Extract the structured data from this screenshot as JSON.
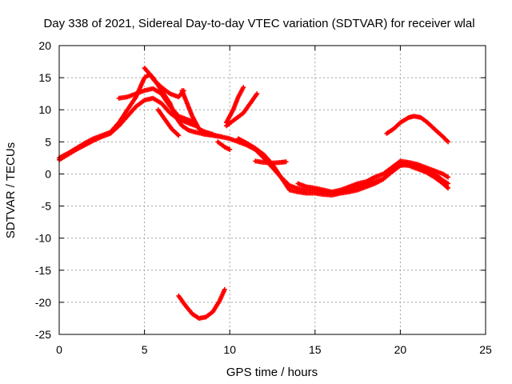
{
  "chart_data": {
    "type": "scatter",
    "title": "Day 338 of 2021, Sidereal Day-to-day VTEC variation (SDTVAR) for receiver wlal",
    "xlabel": "GPS time / hours",
    "ylabel": "SDTVAR / TECUs",
    "xlim": [
      0,
      25
    ],
    "ylim": [
      -25,
      20
    ],
    "xticks": [
      0,
      5,
      10,
      15,
      20,
      25
    ],
    "yticks": [
      20,
      15,
      10,
      5,
      0,
      -5,
      -10,
      -15,
      -20,
      -25
    ],
    "grid": true,
    "marker": "+",
    "color": "#ff0000",
    "series": [
      {
        "name": "track-1",
        "points": [
          [
            0,
            2.5
          ],
          [
            0.5,
            3.2
          ],
          [
            1,
            4
          ],
          [
            1.5,
            4.8
          ],
          [
            2,
            5.5
          ],
          [
            2.5,
            6
          ],
          [
            3,
            6.5
          ],
          [
            3.5,
            8
          ],
          [
            4,
            10
          ],
          [
            4.5,
            12
          ],
          [
            5,
            15
          ],
          [
            5.3,
            15.5
          ],
          [
            5.6,
            14.5
          ],
          [
            6,
            13.5
          ],
          [
            6.5,
            12.5
          ],
          [
            7,
            12
          ],
          [
            7.3,
            13
          ]
        ]
      },
      {
        "name": "track-2",
        "points": [
          [
            0,
            2.2
          ],
          [
            0.5,
            3
          ],
          [
            1,
            3.8
          ],
          [
            1.5,
            4.5
          ],
          [
            2,
            5.2
          ],
          [
            2.5,
            5.8
          ],
          [
            3,
            6.3
          ],
          [
            3.5,
            7.5
          ],
          [
            4,
            9
          ],
          [
            4.5,
            10.5
          ],
          [
            5,
            11.5
          ],
          [
            5.5,
            11.8
          ],
          [
            6,
            11
          ],
          [
            6.5,
            9.5
          ],
          [
            7,
            8.5
          ],
          [
            7.5,
            8
          ],
          [
            8,
            7.5
          ]
        ]
      },
      {
        "name": "track-3",
        "points": [
          [
            3.5,
            11.8
          ],
          [
            4,
            12
          ],
          [
            4.5,
            12.5
          ],
          [
            5,
            13
          ],
          [
            5.5,
            13.3
          ],
          [
            6,
            12.5
          ],
          [
            6.5,
            10.5
          ],
          [
            7,
            9
          ],
          [
            7.5,
            8.5
          ],
          [
            8,
            8
          ]
        ]
      },
      {
        "name": "track-4",
        "points": [
          [
            5,
            16.5
          ],
          [
            5.5,
            15
          ],
          [
            6,
            13
          ],
          [
            6.5,
            11
          ],
          [
            6.8,
            9
          ],
          [
            7.2,
            7.5
          ],
          [
            7.6,
            6.8
          ],
          [
            8,
            6.5
          ],
          [
            8.5,
            6.2
          ],
          [
            9,
            6
          ],
          [
            9.5,
            5.8
          ]
        ]
      },
      {
        "name": "track-5",
        "points": [
          [
            7.2,
            13
          ],
          [
            7.5,
            11
          ],
          [
            7.8,
            9
          ],
          [
            8.2,
            7
          ],
          [
            8.6,
            6.5
          ],
          [
            9,
            6.2
          ]
        ]
      },
      {
        "name": "track-6",
        "points": [
          [
            5.8,
            10
          ],
          [
            6.2,
            8.5
          ],
          [
            6.6,
            7
          ],
          [
            7,
            6
          ]
        ]
      },
      {
        "name": "track-7",
        "points": [
          [
            9.3,
            5
          ],
          [
            9.7,
            4.2
          ],
          [
            10,
            3.8
          ]
        ]
      },
      {
        "name": "track-8",
        "points": [
          [
            9.8,
            7.5
          ],
          [
            10.3,
            8.5
          ],
          [
            10.8,
            9.5
          ],
          [
            11.2,
            11
          ],
          [
            11.6,
            12.5
          ]
        ]
      },
      {
        "name": "track-9",
        "points": [
          [
            9.8,
            8
          ],
          [
            10.2,
            10
          ],
          [
            10.5,
            12
          ],
          [
            10.8,
            13.5
          ]
        ]
      },
      {
        "name": "track-10",
        "points": [
          [
            8.5,
            6.2
          ],
          [
            9,
            6.1
          ],
          [
            9.5,
            5.8
          ],
          [
            10,
            5.5
          ],
          [
            10.5,
            5
          ],
          [
            11,
            4.5
          ],
          [
            11.5,
            3.8
          ],
          [
            12,
            2.5
          ],
          [
            12.5,
            1
          ],
          [
            13,
            -0.5
          ],
          [
            13.5,
            -1.8
          ],
          [
            14,
            -2.3
          ],
          [
            14.5,
            -2.5
          ],
          [
            15,
            -2.5
          ],
          [
            15.5,
            -2.8
          ],
          [
            16,
            -3
          ],
          [
            16.5,
            -2.8
          ],
          [
            17,
            -2.5
          ],
          [
            17.5,
            -2
          ],
          [
            18,
            -1.5
          ],
          [
            18.5,
            -1.2
          ],
          [
            19,
            -0.8
          ],
          [
            19.5,
            0.3
          ],
          [
            20,
            1.3
          ],
          [
            20.5,
            1.5
          ],
          [
            21,
            1.2
          ],
          [
            21.5,
            0.8
          ],
          [
            22,
            0
          ],
          [
            22.5,
            -1
          ],
          [
            22.8,
            -1.5
          ]
        ]
      },
      {
        "name": "track-11",
        "points": [
          [
            10.5,
            5.5
          ],
          [
            11,
            4.8
          ],
          [
            11.5,
            4
          ],
          [
            12,
            3
          ],
          [
            12.5,
            1.5
          ],
          [
            13,
            -0.5
          ],
          [
            13.5,
            -2.5
          ],
          [
            14,
            -2.8
          ],
          [
            14.5,
            -3
          ],
          [
            15,
            -3
          ],
          [
            15.5,
            -3.2
          ],
          [
            16,
            -3.3
          ],
          [
            16.5,
            -3
          ],
          [
            17,
            -2.8
          ],
          [
            17.5,
            -2.5
          ],
          [
            18,
            -2
          ],
          [
            18.5,
            -1.5
          ],
          [
            19,
            -0.8
          ],
          [
            19.5,
            0.5
          ],
          [
            20,
            1.5
          ],
          [
            20.5,
            1.3
          ],
          [
            21,
            0.8
          ],
          [
            21.5,
            0.3
          ],
          [
            22,
            -0.5
          ],
          [
            22.5,
            -1.5
          ],
          [
            22.8,
            -2.2
          ]
        ]
      },
      {
        "name": "track-12",
        "points": [
          [
            11.5,
            2
          ],
          [
            12,
            1.8
          ],
          [
            12.5,
            1.7
          ],
          [
            13,
            1.8
          ],
          [
            13.3,
            1.9
          ]
        ]
      },
      {
        "name": "track-13",
        "points": [
          [
            14,
            -1.5
          ],
          [
            14.5,
            -2
          ],
          [
            15,
            -2.2
          ],
          [
            15.5,
            -2.5
          ],
          [
            16,
            -2.8
          ],
          [
            16.5,
            -2.5
          ],
          [
            17,
            -2
          ],
          [
            17.5,
            -1.5
          ],
          [
            18,
            -1.2
          ],
          [
            18.5,
            -0.5
          ],
          [
            19,
            0
          ],
          [
            19.5,
            1
          ],
          [
            20,
            2
          ],
          [
            20.5,
            1.8
          ],
          [
            21,
            1.5
          ],
          [
            21.5,
            1
          ],
          [
            22,
            0.5
          ],
          [
            22.5,
            0
          ],
          [
            22.8,
            -0.5
          ]
        ]
      },
      {
        "name": "track-14",
        "points": [
          [
            19.2,
            6.3
          ],
          [
            19.6,
            7
          ],
          [
            20,
            8
          ],
          [
            20.5,
            8.8
          ],
          [
            20.8,
            9
          ],
          [
            21.2,
            8.8
          ],
          [
            21.6,
            8
          ],
          [
            22,
            7
          ],
          [
            22.5,
            5.8
          ],
          [
            22.8,
            5
          ]
        ]
      },
      {
        "name": "track-15",
        "points": [
          [
            7,
            -19
          ],
          [
            7.4,
            -20.5
          ],
          [
            7.8,
            -21.8
          ],
          [
            8.2,
            -22.5
          ],
          [
            8.6,
            -22.3
          ],
          [
            9,
            -21.5
          ],
          [
            9.4,
            -19.8
          ],
          [
            9.7,
            -18
          ]
        ]
      }
    ]
  }
}
